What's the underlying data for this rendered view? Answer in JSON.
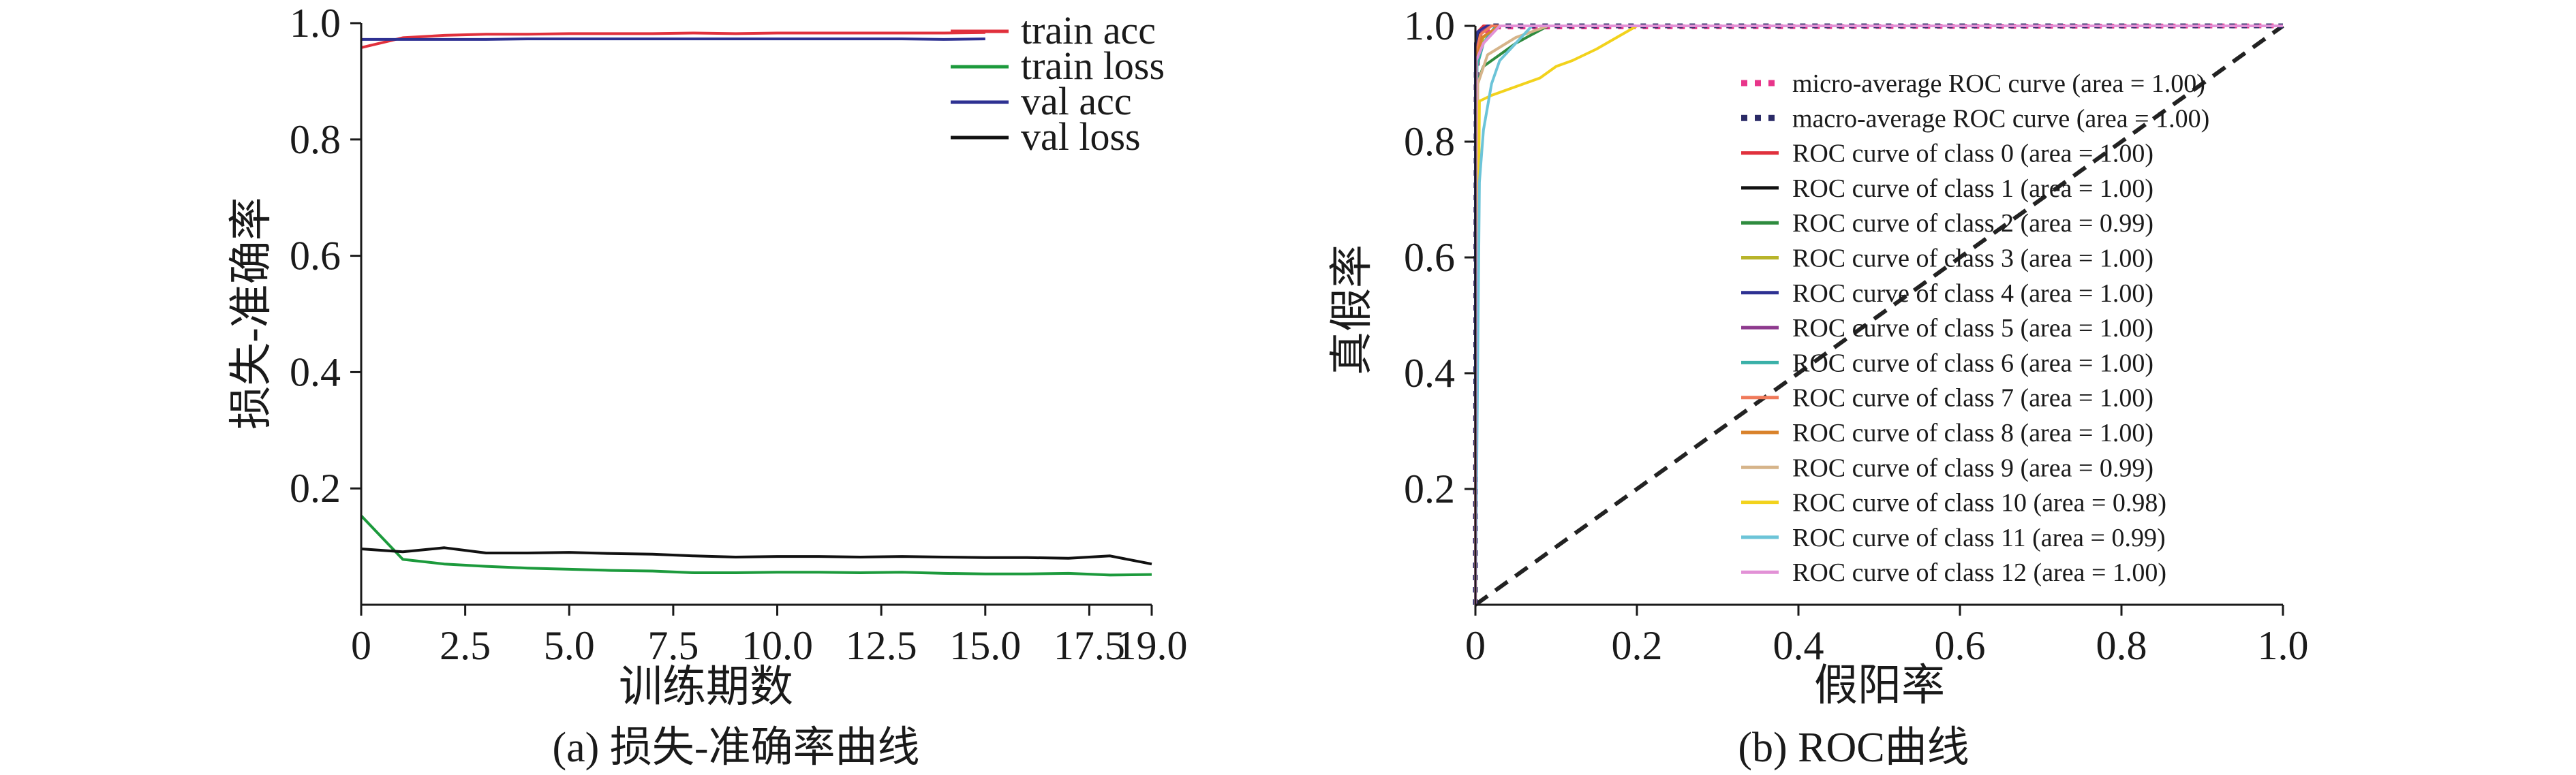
{
  "chart_data": [
    {
      "type": "line",
      "caption": "(a) 损失-准确率曲线",
      "xlabel": "训练期数",
      "ylabel": "损失-准确率",
      "xlim": [
        0,
        19
      ],
      "ylim": [
        0,
        1.0
      ],
      "xticks": [
        "0",
        "2.5",
        "5.0",
        "7.5",
        "10.0",
        "12.5",
        "15.0",
        "17.5",
        "19.0"
      ],
      "xtick_values": [
        0,
        2.5,
        5.0,
        7.5,
        10.0,
        12.5,
        15.0,
        17.5,
        19.0
      ],
      "yticks": [
        "0.2",
        "0.4",
        "0.6",
        "0.8",
        "1.0"
      ],
      "ytick_values": [
        0.2,
        0.4,
        0.6,
        0.8,
        1.0
      ],
      "legend_position": "top-right",
      "series": [
        {
          "name": "train acc",
          "color": "#e0303c",
          "x": [
            0,
            1,
            2,
            3,
            4,
            5,
            6,
            7,
            8,
            9,
            10,
            11,
            12,
            13,
            14,
            15
          ],
          "y": [
            0.958,
            0.975,
            0.979,
            0.981,
            0.981,
            0.982,
            0.982,
            0.982,
            0.983,
            0.982,
            0.983,
            0.983,
            0.983,
            0.983,
            0.983,
            0.984
          ]
        },
        {
          "name": "train loss",
          "color": "#1c9a3c",
          "x": [
            0,
            1,
            2,
            3,
            4,
            5,
            6,
            7,
            8,
            9,
            10,
            11,
            12,
            13,
            14,
            15,
            16,
            17,
            18,
            19
          ],
          "y": [
            0.153,
            0.078,
            0.07,
            0.066,
            0.063,
            0.061,
            0.059,
            0.058,
            0.055,
            0.055,
            0.056,
            0.056,
            0.055,
            0.056,
            0.054,
            0.053,
            0.053,
            0.054,
            0.051,
            0.052
          ]
        },
        {
          "name": "val acc",
          "color": "#2e3192",
          "x": [
            0,
            1,
            2,
            3,
            4,
            5,
            6,
            7,
            8,
            9,
            10,
            11,
            12,
            13,
            14,
            15
          ],
          "y": [
            0.972,
            0.972,
            0.972,
            0.972,
            0.973,
            0.973,
            0.973,
            0.973,
            0.973,
            0.973,
            0.973,
            0.973,
            0.973,
            0.973,
            0.972,
            0.973
          ]
        },
        {
          "name": "val loss",
          "color": "#111111",
          "x": [
            0,
            1,
            2,
            3,
            4,
            5,
            6,
            7,
            8,
            9,
            10,
            11,
            12,
            13,
            14,
            15,
            16,
            17,
            18,
            19
          ],
          "y": [
            0.096,
            0.091,
            0.098,
            0.089,
            0.089,
            0.09,
            0.088,
            0.087,
            0.084,
            0.082,
            0.083,
            0.083,
            0.082,
            0.083,
            0.082,
            0.081,
            0.081,
            0.08,
            0.084,
            0.07
          ]
        }
      ]
    },
    {
      "type": "line",
      "caption": "(b) ROC曲线",
      "xlabel": "假阳率",
      "ylabel": "真假率",
      "xlim": [
        0,
        1.0
      ],
      "ylim": [
        0,
        1.0
      ],
      "xticks": [
        "0",
        "0.2",
        "0.4",
        "0.6",
        "0.8",
        "1.0"
      ],
      "xtick_values": [
        0,
        0.2,
        0.4,
        0.6,
        0.8,
        1.0
      ],
      "yticks": [
        "0.2",
        "0.4",
        "0.6",
        "0.8",
        "1.0"
      ],
      "ytick_values": [
        0.2,
        0.4,
        0.6,
        0.8,
        1.0
      ],
      "legend_position": "right",
      "series": [
        {
          "name": "micro-average ROC curve (area = 1.00)",
          "color": "#e8358a",
          "style": "dotted",
          "x": [
            0,
            0.001,
            0.005,
            0.02,
            1.0
          ],
          "y": [
            0,
            0.9,
            0.985,
            0.998,
            1.0
          ]
        },
        {
          "name": "macro-average ROC curve (area = 1.00)",
          "color": "#2a2a66",
          "style": "dotted",
          "x": [
            0,
            0.001,
            0.005,
            0.02,
            1.0
          ],
          "y": [
            0,
            0.92,
            0.99,
            1.0,
            1.0
          ]
        },
        {
          "name": "ROC curve of class 0 (area = 1.00)",
          "color": "#e0303c",
          "x": [
            0,
            0.0,
            0.003,
            0.01,
            1.0
          ],
          "y": [
            0,
            0.96,
            0.99,
            1.0,
            1.0
          ]
        },
        {
          "name": "ROC curve of class 1 (area = 1.00)",
          "color": "#111111",
          "x": [
            0,
            0.0,
            0.004,
            0.02,
            1.0
          ],
          "y": [
            0,
            0.95,
            0.985,
            1.0,
            1.0
          ]
        },
        {
          "name": "ROC curve of class 2 (area = 0.99)",
          "color": "#2e8b3e",
          "x": [
            0,
            0.002,
            0.01,
            0.03,
            0.05,
            0.07,
            0.09,
            1.0
          ],
          "y": [
            0,
            0.9,
            0.93,
            0.95,
            0.97,
            0.985,
            1.0,
            1.0
          ]
        },
        {
          "name": "ROC curve of class 3 (area = 1.00)",
          "color": "#b8b42a",
          "x": [
            0,
            0.001,
            0.01,
            0.03,
            1.0
          ],
          "y": [
            0,
            0.95,
            0.98,
            1.0,
            1.0
          ]
        },
        {
          "name": "ROC curve of class 4 (area = 1.00)",
          "color": "#2e3192",
          "x": [
            0,
            0.0,
            0.003,
            0.015,
            1.0
          ],
          "y": [
            0,
            0.97,
            0.99,
            1.0,
            1.0
          ]
        },
        {
          "name": "ROC curve of class 5 (area = 1.00)",
          "color": "#8e3a8e",
          "x": [
            0,
            0.001,
            0.008,
            0.02,
            1.0
          ],
          "y": [
            0,
            0.96,
            0.99,
            1.0,
            1.0
          ]
        },
        {
          "name": "ROC curve of class 6 (area = 1.00)",
          "color": "#3ab0a8",
          "x": [
            0,
            0.002,
            0.01,
            0.025,
            1.0
          ],
          "y": [
            0,
            0.93,
            0.97,
            1.0,
            1.0
          ]
        },
        {
          "name": "ROC curve of class 7 (area = 1.00)",
          "color": "#f07a5a",
          "x": [
            0,
            0.001,
            0.006,
            0.02,
            1.0
          ],
          "y": [
            0,
            0.95,
            0.985,
            1.0,
            1.0
          ]
        },
        {
          "name": "ROC curve of class 8 (area = 1.00)",
          "color": "#d9822b",
          "x": [
            0,
            0.001,
            0.008,
            0.03,
            1.0
          ],
          "y": [
            0,
            0.94,
            0.98,
            1.0,
            1.0
          ]
        },
        {
          "name": "ROC curve of class 9 (area = 0.99)",
          "color": "#d6b48a",
          "x": [
            0,
            0.003,
            0.015,
            0.05,
            0.09,
            1.0
          ],
          "y": [
            0,
            0.9,
            0.95,
            0.98,
            1.0,
            1.0
          ]
        },
        {
          "name": "ROC curve of class 10 (area = 0.98)",
          "color": "#f2d21c",
          "x": [
            0,
            0.005,
            0.02,
            0.04,
            0.06,
            0.08,
            0.1,
            0.12,
            0.15,
            0.2,
            1.0
          ],
          "y": [
            0,
            0.87,
            0.88,
            0.89,
            0.9,
            0.91,
            0.93,
            0.94,
            0.96,
            1.0,
            1.0
          ]
        },
        {
          "name": "ROC curve of class 11 (area = 0.99)",
          "color": "#6cc4d8",
          "x": [
            0,
            0.005,
            0.01,
            0.02,
            0.03,
            0.05,
            0.07,
            1.0
          ],
          "y": [
            0,
            0.73,
            0.82,
            0.9,
            0.94,
            0.97,
            1.0,
            1.0
          ]
        },
        {
          "name": "ROC curve of class 12 (area = 1.00)",
          "color": "#e291d6",
          "x": [
            0,
            0.001,
            0.01,
            0.03,
            1.0
          ],
          "y": [
            0,
            0.94,
            0.97,
            1.0,
            1.0
          ]
        }
      ],
      "diagonal": {
        "x": [
          0,
          1
        ],
        "y": [
          0,
          1
        ],
        "color": "#222222",
        "style": "dashed"
      }
    }
  ]
}
